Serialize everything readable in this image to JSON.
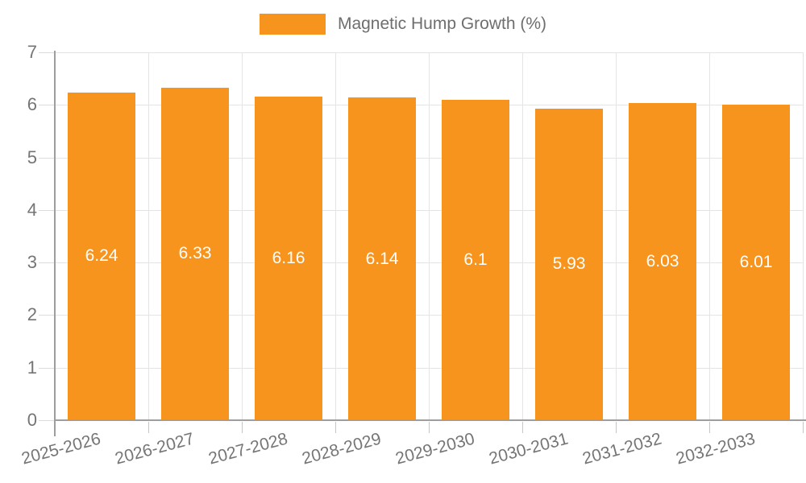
{
  "legend": {
    "label": "Magnetic Hump Growth (%)",
    "swatch_color": "#F7941E"
  },
  "chart_data": {
    "type": "bar",
    "title": "Magnetic Hump Growth (%)",
    "categories": [
      "2025-2026",
      "2026-2027",
      "2027-2028",
      "2028-2029",
      "2029-2030",
      "2030-2031",
      "2031-2032",
      "2032-2033"
    ],
    "values": [
      6.24,
      6.33,
      6.16,
      6.14,
      6.1,
      5.93,
      6.03,
      6.01
    ],
    "value_labels": [
      "6.24",
      "6.33",
      "6.16",
      "6.14",
      "6.1",
      "5.93",
      "6.03",
      "6.01"
    ],
    "xlabel": "",
    "ylabel": "",
    "ylim": [
      0,
      7
    ],
    "yticks": [
      0,
      1,
      2,
      3,
      4,
      5,
      6,
      7
    ],
    "grid": true,
    "legend_position": "top-center",
    "colors": {
      "bar": "#F7941E",
      "bar_value_text": "#ffffff",
      "gridline": "#e4e4e4",
      "axis_line": "#9e9e9e",
      "tick_text": "#757575",
      "legend_text": "#6e6e6e"
    }
  }
}
